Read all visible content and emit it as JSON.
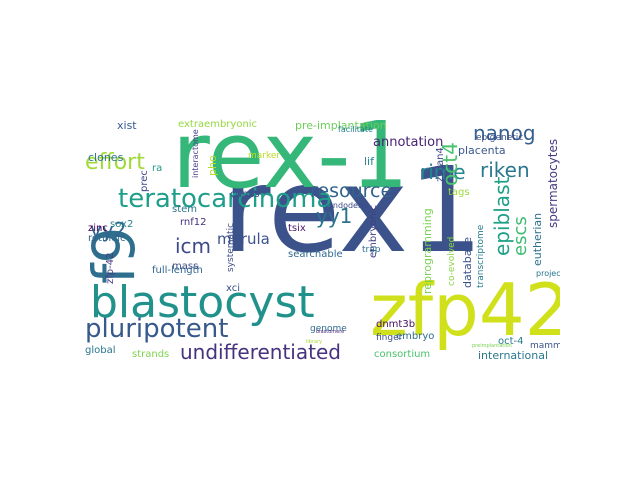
{
  "words": [
    {
      "text": "rex1",
      "color": "#3b528b"
    },
    {
      "text": "rex-1",
      "color": "#35b779"
    },
    {
      "text": "zfp42",
      "color": "#d0e11c"
    },
    {
      "text": "blastocyst",
      "color": "#21918c"
    },
    {
      "text": "f9",
      "color": "#2e6f8e"
    },
    {
      "text": "teratocarcinoma",
      "color": "#1f9e89"
    },
    {
      "text": "pluripotent",
      "color": "#38598c"
    },
    {
      "text": "undifferentiated",
      "color": "#46327e"
    },
    {
      "text": "resource",
      "color": "#33638d"
    },
    {
      "text": "effort",
      "color": "#a0da39"
    },
    {
      "text": "nanog",
      "color": "#355f8d"
    },
    {
      "text": "rime",
      "color": "#25858e"
    },
    {
      "text": "riken",
      "color": "#2a788e"
    },
    {
      "text": "oct4",
      "color": "#4ac16d"
    },
    {
      "text": "epiblast",
      "color": "#1fa187"
    },
    {
      "text": "escs",
      "color": "#3fbc73"
    },
    {
      "text": "yy2",
      "color": "#32648e"
    },
    {
      "text": "yy1",
      "color": "#2c728e"
    },
    {
      "text": "icm",
      "color": "#3e4989"
    },
    {
      "text": "morula",
      "color": "#3b528b"
    },
    {
      "text": "pre-implantation",
      "color": "#6ccd5a"
    },
    {
      "text": "extraembryonic",
      "color": "#95d840"
    },
    {
      "text": "annotation",
      "color": "#482475"
    },
    {
      "text": "placenta",
      "color": "#38588c"
    },
    {
      "text": "spermatocytes",
      "color": "#453781"
    },
    {
      "text": "eutherian",
      "color": "#2d708e"
    },
    {
      "text": "clones",
      "color": "#2c728e"
    },
    {
      "text": "zinc",
      "color": "#440154"
    },
    {
      "text": "sox2",
      "color": "#26828e"
    },
    {
      "text": "prec",
      "color": "#3f4788"
    },
    {
      "text": "ra",
      "color": "#1f9a8a"
    },
    {
      "text": "xist",
      "color": "#375a8c"
    },
    {
      "text": "pho",
      "color": "#b5de2b"
    },
    {
      "text": "cdnas",
      "color": "#3b528b"
    },
    {
      "text": "lif",
      "color": "#25838e"
    },
    {
      "text": "tags",
      "color": "#9dd93b"
    },
    {
      "text": "reprogramming",
      "color": "#7ad151"
    },
    {
      "text": "zscan4",
      "color": "#404688"
    },
    {
      "text": "oct-4",
      "color": "#2a788e"
    },
    {
      "text": "retinoic",
      "color": "#31688e"
    },
    {
      "text": "stem",
      "color": "#2b758e"
    },
    {
      "text": "rnf12",
      "color": "#46317e"
    },
    {
      "text": "zfp-42",
      "color": "#443a83"
    },
    {
      "text": "full-length",
      "color": "#31668e"
    },
    {
      "text": "mass",
      "color": "#3d4d8a"
    },
    {
      "text": "systematic",
      "color": "#3e4c8a"
    },
    {
      "text": "searchable",
      "color": "#30698e"
    },
    {
      "text": "tsix",
      "color": "#481a6c"
    },
    {
      "text": "embryonic",
      "color": "#424186"
    },
    {
      "text": "database",
      "color": "#3b528b"
    },
    {
      "text": "transcriptome",
      "color": "#277f8e"
    },
    {
      "text": "co-evolved",
      "color": "#8bd646"
    },
    {
      "text": "genome",
      "color": "#2f6b8e"
    },
    {
      "text": "global",
      "color": "#2a768e"
    },
    {
      "text": "strands",
      "color": "#7fd34e"
    },
    {
      "text": "embryo",
      "color": "#2e6e8e"
    },
    {
      "text": "dnmt3b",
      "color": "#470e61"
    },
    {
      "text": "consortium",
      "color": "#4ac16d"
    },
    {
      "text": "international",
      "color": "#2a788e"
    },
    {
      "text": "mammalian",
      "color": "#3a548c"
    },
    {
      "text": "finger",
      "color": "#3d4e8a"
    },
    {
      "text": "trap",
      "color": "#2c718e"
    },
    {
      "text": "xci",
      "color": "#3a538b"
    },
    {
      "text": "epigenetic",
      "color": "#3c508b"
    },
    {
      "text": "facilitate",
      "color": "#26828e"
    },
    {
      "text": "interactome",
      "color": "#433e85"
    },
    {
      "text": "marker",
      "color": "#b8de29"
    },
    {
      "text": "endoderm",
      "color": "#3e4a89"
    },
    {
      "text": "project",
      "color": "#2b748e"
    },
    {
      "text": "preimplantation",
      "color": "#7ad151"
    },
    {
      "text": "library",
      "color": "#a5db36"
    },
    {
      "text": "blastomere",
      "color": "#482878"
    }
  ]
}
